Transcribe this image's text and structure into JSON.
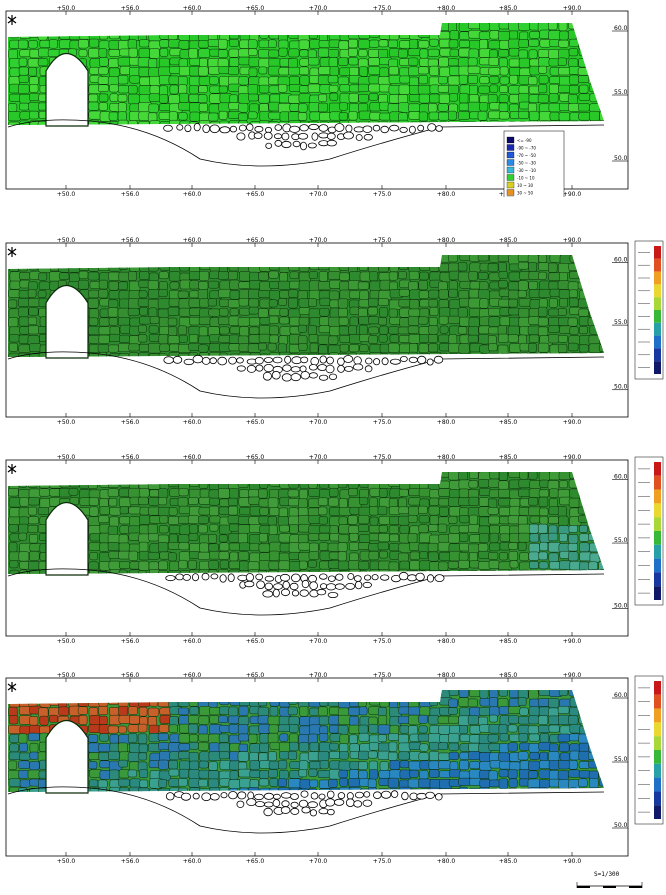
{
  "panels": [
    {
      "id": "panel-1",
      "top_ticks": [
        "+50.0",
        "+56.0",
        "+60.0",
        "+65.0",
        "+70.0",
        "+75.0",
        "+80.0",
        "+85.0",
        "+90.0"
      ],
      "bottom_ticks": [
        "+50.0",
        "+56.0",
        "+60.0",
        "+65.0",
        "+70.0",
        "+75.0",
        "+80.0",
        "+85.0",
        "+90.0"
      ],
      "right_ticks": [
        "60.0",
        "55.0",
        "50.0"
      ],
      "palette": [
        "#28c828",
        "#30d030",
        "#44d838"
      ]
    },
    {
      "id": "panel-2",
      "top_ticks": [
        "+50.0",
        "+56.0",
        "+60.0",
        "+65.0",
        "+70.0",
        "+75.0",
        "+80.0",
        "+85.0",
        "+90.0"
      ],
      "bottom_ticks": [
        "+50.0",
        "+56.0",
        "+60.0",
        "+65.0",
        "+70.0",
        "+75.0",
        "+80.0",
        "+85.0",
        "+90.0"
      ],
      "right_ticks": [
        "60.0",
        "55.0",
        "50.0"
      ],
      "palette": [
        "#2e8a2e",
        "#358f30",
        "#3c9a35"
      ]
    },
    {
      "id": "panel-3",
      "top_ticks": [
        "+50.0",
        "+56.0",
        "+60.0",
        "+65.0",
        "+70.0",
        "+75.0",
        "+80.0",
        "+85.0",
        "+90.0"
      ],
      "bottom_ticks": [
        "+50.0",
        "+56.0",
        "+60.0",
        "+65.0",
        "+70.0",
        "+75.0",
        "+80.0",
        "+85.0",
        "+90.0"
      ],
      "right_ticks": [
        "60.0",
        "55.0",
        "50.0"
      ],
      "palette": [
        "#2e8a2e",
        "#379332",
        "#3f9c38"
      ]
    },
    {
      "id": "panel-4",
      "top_ticks": [
        "+50.0",
        "+56.0",
        "+60.0",
        "+65.0",
        "+70.0",
        "+75.0",
        "+80.0",
        "+85.0",
        "+90.0"
      ],
      "bottom_ticks": [
        "+50.0",
        "+56.0",
        "+60.0",
        "+65.0",
        "+70.0",
        "+75.0",
        "+80.0",
        "+85.0",
        "+90.0"
      ],
      "right_ticks": [
        "60.0",
        "55.0",
        "50.0"
      ],
      "palette": [
        "#3a9a3a",
        "#2b8a7a",
        "#2a78b0"
      ]
    }
  ],
  "legend_main": {
    "rows": [
      "<= -90",
      "-90 ~ -70",
      "-70 ~ -50",
      "-50 ~ -30",
      "-30 ~ -10",
      "-10 ~ 10",
      "10 ~ 30",
      "30 ~ 50",
      "50 ~ 70",
      "70 ~ 90",
      "> 90"
    ],
    "swatches": [
      "#0a0a6a",
      "#1a2ab0",
      "#2058d8",
      "#2a8ae8",
      "#38b8d8",
      "#30d030",
      "#d8d020",
      "#e89020",
      "#d83020",
      "#a01010",
      "#400808"
    ]
  },
  "scale": {
    "label": "S=1/300"
  }
}
